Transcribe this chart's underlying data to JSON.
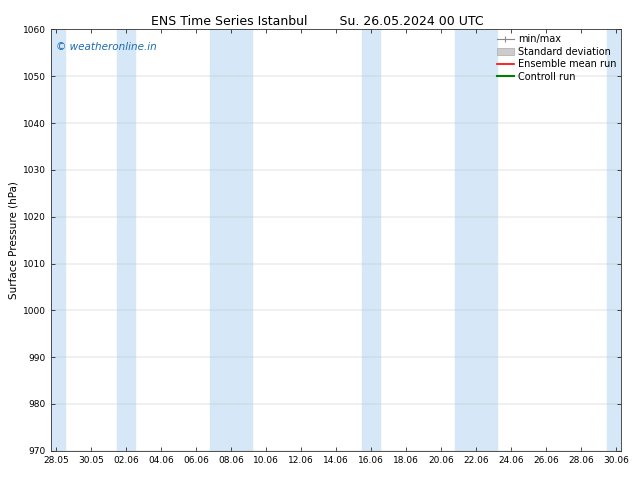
{
  "title_left": "ENS Time Series Istanbul",
  "title_right": "Su. 26.05.2024 00 UTC",
  "ylabel": "Surface Pressure (hPa)",
  "ylim": [
    970,
    1060
  ],
  "yticks": [
    970,
    980,
    990,
    1000,
    1010,
    1020,
    1030,
    1040,
    1050,
    1060
  ],
  "xtick_labels": [
    "28.05",
    "30.05",
    "02.06",
    "04.06",
    "06.06",
    "08.06",
    "10.06",
    "12.06",
    "14.06",
    "16.06",
    "18.06",
    "20.06",
    "22.06",
    "24.06",
    "26.06",
    "28.06",
    "30.06"
  ],
  "num_ticks": 17,
  "xmin": 0,
  "xmax": 32,
  "band_color": "#d6e8f7",
  "background_color": "#ffffff",
  "watermark_text": "© weatheronline.in",
  "watermark_color": "#1a6ab5",
  "watermark_fontsize": 7.5,
  "legend_items": [
    {
      "label": "min/max",
      "color": "#999999",
      "lw": 0.8
    },
    {
      "label": "Standard deviation",
      "color": "#cccccc",
      "lw": 4
    },
    {
      "label": "Ensemble mean run",
      "color": "red",
      "lw": 1.2
    },
    {
      "label": "Controll run",
      "color": "green",
      "lw": 1.5
    }
  ],
  "title_fontsize": 9,
  "ylabel_fontsize": 7.5,
  "tick_fontsize": 6.5,
  "legend_fontsize": 7
}
